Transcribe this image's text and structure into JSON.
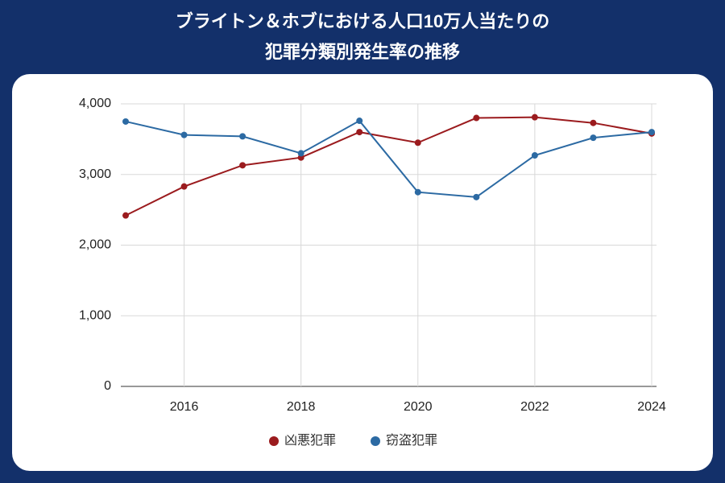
{
  "chart_data": {
    "type": "line",
    "title": [
      "ブライトン＆ホブにおける人口10万人当たりの",
      "犯罪分類別発生率の推移"
    ],
    "x": [
      2015,
      2016,
      2017,
      2018,
      2019,
      2020,
      2021,
      2022,
      2023,
      2024
    ],
    "series": [
      {
        "name": "凶悪犯罪",
        "color": "#9b1b1e",
        "values": [
          2420,
          2830,
          3130,
          3240,
          3600,
          3450,
          3800,
          3810,
          3730,
          3580
        ]
      },
      {
        "name": "窃盗犯罪",
        "color": "#2c6aa3",
        "values": [
          3750,
          3560,
          3540,
          3300,
          3760,
          2750,
          2680,
          3270,
          3520,
          3600
        ]
      }
    ],
    "xlim": [
      2015,
      2024
    ],
    "xticks": [
      2016,
      2018,
      2020,
      2022,
      2024
    ],
    "ylim": [
      0,
      4000
    ],
    "yticks": [
      0,
      {
        "value": 1000,
        "label": "1,000"
      },
      {
        "value": 2000,
        "label": "2,000"
      },
      {
        "value": 3000,
        "label": "3,000"
      },
      {
        "value": 4000,
        "label": "4,000"
      }
    ],
    "grid": true,
    "legend": "bottom"
  }
}
